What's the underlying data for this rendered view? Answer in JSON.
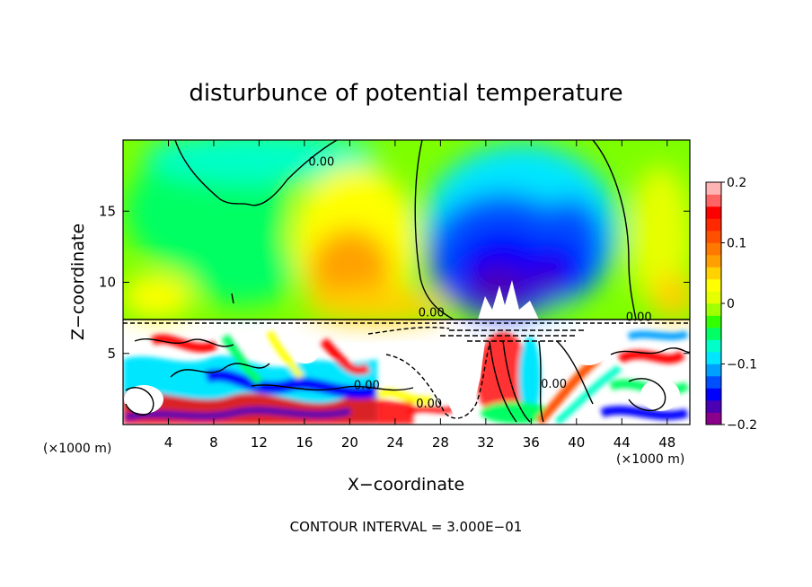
{
  "chart_data": {
    "type": "heatmap",
    "title": "disturbunce of potential temperature",
    "xlabel": "X−coordinate",
    "ylabel": "Z−coordinate",
    "x_unit_left": "(×1000 m)",
    "x_unit_right": "(×1000 m)",
    "xlim": [
      0,
      50
    ],
    "ylim": [
      0,
      20
    ],
    "x_ticks": [
      4,
      8,
      12,
      16,
      20,
      24,
      28,
      32,
      36,
      40,
      44,
      48
    ],
    "y_ticks": [
      5,
      10,
      15
    ],
    "footer": "CONTOUR INTERVAL = 3.000E−01",
    "colorbar": {
      "min": -0.2,
      "max": 0.2,
      "tick_labels": [
        {
          "value": 0.2,
          "label": "0.2"
        },
        {
          "value": 0.1,
          "label": "0.1"
        },
        {
          "value": 0,
          "label": "0"
        },
        {
          "value": -0.1,
          "label": "−0.1"
        },
        {
          "value": -0.2,
          "label": "−0.2"
        }
      ],
      "colors": [
        "#8b008b",
        "#4b00b4",
        "#0000ff",
        "#0050ff",
        "#00a0ff",
        "#00e6ff",
        "#00ffc8",
        "#00ff64",
        "#32ff00",
        "#a0ff00",
        "#e6ff00",
        "#ffff00",
        "#ffd200",
        "#ffa000",
        "#ff7800",
        "#ff5000",
        "#ff2800",
        "#ff0000",
        "#ff6464",
        "#ffb4b4"
      ]
    },
    "contour_labels": [
      {
        "text": "0.00",
        "x": 17.5,
        "y": 18.2
      },
      {
        "text": "0.00",
        "x": 27.2,
        "y": 7.6
      },
      {
        "text": "0.00",
        "x": 45.5,
        "y": 7.3
      },
      {
        "text": "0.00",
        "x": 21.5,
        "y": 2.5
      },
      {
        "text": "0.00",
        "x": 27.0,
        "y": 1.2
      },
      {
        "text": "0.00",
        "x": 38.0,
        "y": 2.6
      }
    ]
  }
}
